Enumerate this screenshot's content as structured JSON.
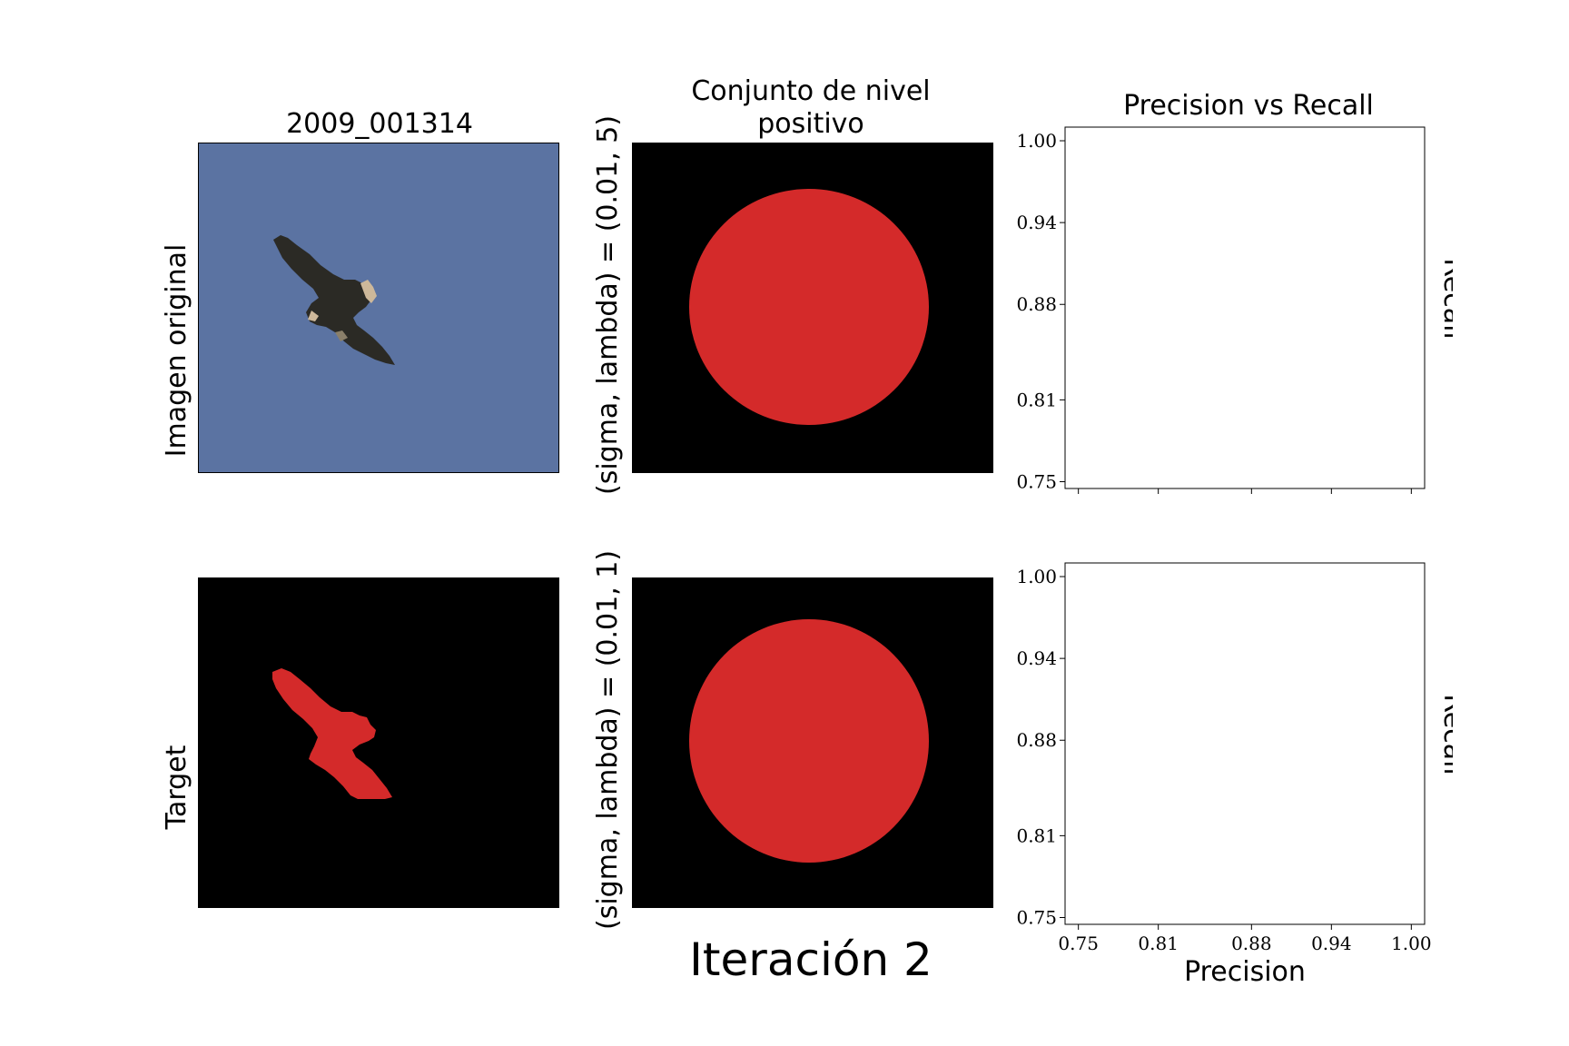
{
  "figure": {
    "image_title": "2009_001314",
    "row_labels": [
      "Imagen original",
      "Target"
    ],
    "middle_title_line1": "Conjunto de nivel",
    "middle_title_line2": "positivo",
    "middle_row_labels": [
      "(sigma, lambda) = (0.01, 5)",
      "(sigma, lambda) = (0.01, 1)"
    ],
    "iteration_label": "Iteración 2",
    "colors": {
      "sky": "#5b73a2",
      "mask": "#d42a2a",
      "background": "#000000",
      "bird": "#2b2a25"
    }
  },
  "chart_data": [
    {
      "type": "line",
      "title": "Precision vs Recall",
      "xlabel": "",
      "ylabel": "Recall",
      "xlim": [
        0.74,
        1.01
      ],
      "ylim": [
        0.745,
        1.01
      ],
      "xticks": [
        0.75,
        0.81,
        0.88,
        0.94,
        1.0
      ],
      "yticks": [
        0.75,
        0.81,
        0.88,
        0.94,
        1.0
      ],
      "xtick_labels": [],
      "ytick_labels": [
        "0.75",
        "0.81",
        "0.88",
        "0.94",
        "1.00"
      ],
      "series": []
    },
    {
      "type": "line",
      "title": "",
      "xlabel": "Precision",
      "ylabel": "Recall",
      "xlim": [
        0.74,
        1.01
      ],
      "ylim": [
        0.745,
        1.01
      ],
      "xticks": [
        0.75,
        0.81,
        0.88,
        0.94,
        1.0
      ],
      "yticks": [
        0.75,
        0.81,
        0.88,
        0.94,
        1.0
      ],
      "xtick_labels": [
        "0.75",
        "0.81",
        "0.88",
        "0.94",
        "1.00"
      ],
      "ytick_labels": [
        "0.75",
        "0.81",
        "0.88",
        "0.94",
        "1.00"
      ],
      "series": []
    }
  ]
}
